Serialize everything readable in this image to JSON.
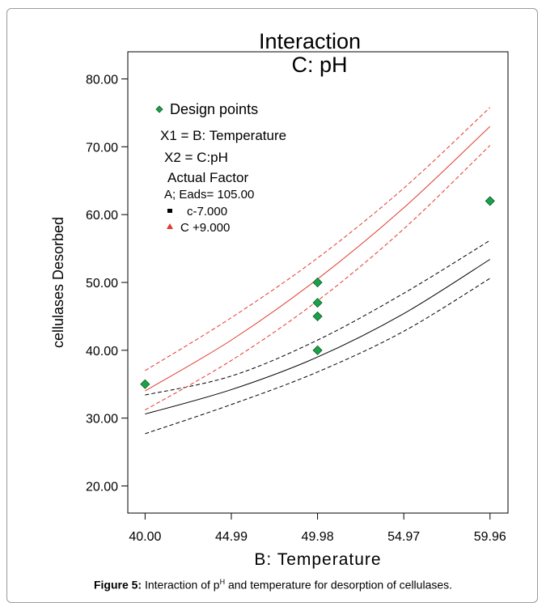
{
  "chart_data": {
    "type": "line",
    "title": "Interaction",
    "subtitle": "C: pH",
    "xlabel": "B: Temperature",
    "ylabel": "cellulases Desorbed",
    "xlim": [
      39.0,
      61.0
    ],
    "ylim": [
      16.0,
      84.0
    ],
    "x_ticks": [
      40.0,
      44.99,
      49.98,
      54.97,
      59.96
    ],
    "x_tick_labels": [
      "40.00",
      "44.99",
      "49.98",
      "54.97",
      "59.96"
    ],
    "y_ticks": [
      20,
      30,
      40,
      50,
      60,
      70,
      80
    ],
    "y_tick_labels": [
      "20.00",
      "30.00",
      "40.00",
      "50.00",
      "60.00",
      "70.00",
      "80.00"
    ],
    "legend": {
      "design_points_label": "Design points",
      "x1": "X1 = B: Temperature",
      "x2": "X2 = C:pH",
      "actual_factor_heading": "Actual Factor",
      "actual_factor_value": "A; Eads= 105.00",
      "low_label": "c-7.000",
      "high_label": "C +9.000"
    },
    "design_points": [
      {
        "x": 40.0,
        "y": 35.0
      },
      {
        "x": 49.98,
        "y": 40.0
      },
      {
        "x": 49.98,
        "y": 45.0
      },
      {
        "x": 49.98,
        "y": 47.0
      },
      {
        "x": 49.98,
        "y": 50.0
      },
      {
        "x": 59.96,
        "y": 62.0
      }
    ],
    "series": [
      {
        "level": "c-7.000",
        "color": "#000000",
        "style": "solid",
        "x": [
          40.0,
          44.99,
          49.98,
          54.97,
          59.96
        ],
        "y": [
          30.6,
          34.2,
          39.0,
          45.4,
          53.4
        ]
      },
      {
        "level": "c-7.000",
        "color": "#000000",
        "style": "dashed",
        "x": [
          40.0,
          44.99,
          49.98,
          54.97,
          59.96
        ],
        "y": [
          33.4,
          36.2,
          41.5,
          48.4,
          56.2
        ]
      },
      {
        "level": "c-7.000",
        "color": "#000000",
        "style": "dashed",
        "x": [
          40.0,
          44.99,
          49.98,
          54.97,
          59.96
        ],
        "y": [
          27.7,
          32.0,
          36.8,
          42.8,
          50.6
        ]
      },
      {
        "level": "C +9.000",
        "color": "#e03a2e",
        "style": "solid",
        "x": [
          40.0,
          44.99,
          49.98,
          54.97,
          59.96
        ],
        "y": [
          34.0,
          41.5,
          50.5,
          61.0,
          73.0
        ]
      },
      {
        "level": "C +9.000",
        "color": "#e03a2e",
        "style": "dashed",
        "x": [
          40.0,
          44.99,
          49.98,
          54.97,
          59.96
        ],
        "y": [
          37.0,
          44.8,
          53.6,
          63.9,
          75.8
        ]
      },
      {
        "level": "C +9.000",
        "color": "#e03a2e",
        "style": "dashed",
        "x": [
          40.0,
          44.99,
          49.98,
          54.97,
          59.96
        ],
        "y": [
          31.2,
          38.5,
          47.3,
          57.9,
          70.2
        ]
      }
    ],
    "marker_color": "#1aa14a",
    "grid": false
  },
  "caption": {
    "label": "Figure 5:",
    "text_before_sup": " Interaction of p",
    "sup": "H",
    "text_after_sup": " and temperature for desorption of cellulases."
  }
}
